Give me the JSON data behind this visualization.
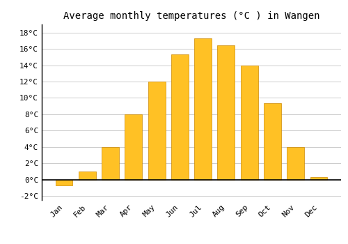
{
  "title": "Average monthly temperatures (°C ) in Wangen",
  "months": [
    "Jan",
    "Feb",
    "Mar",
    "Apr",
    "May",
    "Jun",
    "Jul",
    "Aug",
    "Sep",
    "Oct",
    "Nov",
    "Dec"
  ],
  "temperatures": [
    -0.7,
    1.0,
    4.0,
    8.0,
    12.0,
    15.3,
    17.3,
    16.4,
    14.0,
    9.4,
    4.0,
    0.3
  ],
  "bar_color": "#FFC125",
  "bar_edge_color": "#CC8800",
  "ylim": [
    -2.5,
    19.0
  ],
  "yticks": [
    -2,
    0,
    2,
    4,
    6,
    8,
    10,
    12,
    14,
    16,
    18
  ],
  "ytick_labels": [
    "-2°C",
    "0°C",
    "2°C",
    "4°C",
    "6°C",
    "8°C",
    "10°C",
    "12°C",
    "14°C",
    "16°C",
    "18°C"
  ],
  "grid_color": "#cccccc",
  "bg_color": "#ffffff",
  "plot_bg_color": "#ffffff",
  "title_fontsize": 10,
  "tick_fontsize": 8,
  "bar_width": 0.75
}
